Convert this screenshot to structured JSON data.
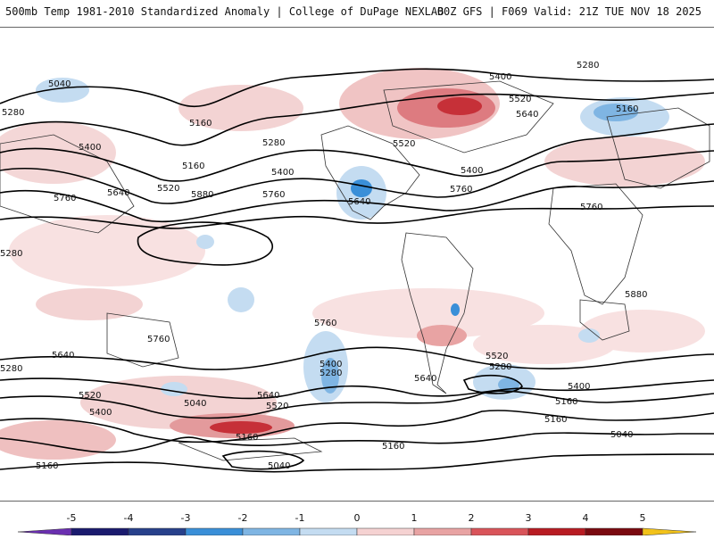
{
  "header": {
    "title": "500mb Temp 1981-2010 Standardized Anomaly | College of DuPage NEXLAB",
    "run_info": "00Z GFS | F069 Valid: 21Z TUE NOV 18 2025"
  },
  "map": {
    "contour_labels": [
      "5040",
      "5280",
      "5160",
      "5400",
      "5520",
      "5640",
      "5760",
      "5880"
    ],
    "labels": [
      "5040",
      "5280",
      "5160",
      "5400",
      "5160",
      "5280",
      "5640",
      "5520",
      "5400",
      "5760",
      "5880",
      "5760",
      "5640",
      "5520",
      "5400",
      "5280",
      "5520",
      "5640",
      "5400",
      "5760",
      "5160",
      "5280",
      "5760",
      "5880",
      "5760",
      "5640",
      "5520",
      "5400",
      "5280",
      "5640",
      "5520",
      "5040",
      "5160",
      "5400",
      "5280",
      "5760",
      "5640",
      "5520",
      "5280",
      "5400",
      "5160",
      "5160",
      "5040",
      "5160",
      "5040"
    ]
  },
  "colorbar": {
    "ticks": [
      "-5",
      "-4",
      "-3",
      "-2",
      "-1",
      "0",
      "1",
      "2",
      "3",
      "4",
      "5"
    ],
    "colors": [
      "#1a1a6e",
      "#27408b",
      "#3a8fd8",
      "#7fb5e3",
      "#c4dcf1",
      "#ffffff",
      "#f5d2d2",
      "#e8a3a3",
      "#d9545a",
      "#b81b22",
      "#7a0a10"
    ],
    "end_low": "#6a2fb0",
    "end_high": "#f2c21a"
  }
}
